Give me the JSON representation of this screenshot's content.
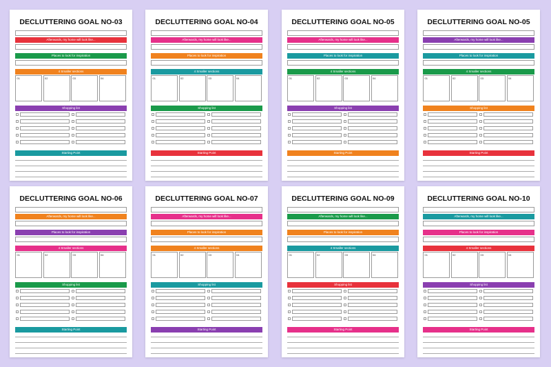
{
  "pages": [
    {
      "title": "DECLUTTERING GOAL NO-03",
      "bars": [
        "Afterwards, my home will look like...",
        "Places to look for inspiration",
        "4 Smaller sections",
        "Shopping list",
        "Starting Point"
      ],
      "sections": [
        "01",
        "02",
        "03",
        "04"
      ],
      "colors": [
        "#e8323c",
        "#1a9a4a",
        "#f0821e",
        "#8a3fb0",
        "#1a9aa0"
      ]
    },
    {
      "title": "DECLUTTERING GOAL NO-04",
      "bars": [
        "Afterwards, my home will look like...",
        "Places to look for inspiration",
        "4 Smaller sections",
        "Shopping list",
        "Starting Point"
      ],
      "sections": [
        "01",
        "02",
        "03",
        "04"
      ],
      "colors": [
        "#e6308a",
        "#f0821e",
        "#1a9aa0",
        "#1a9a4a",
        "#e8323c"
      ]
    },
    {
      "title": "DECLUTTERING GOAL NO-05",
      "bars": [
        "Afterwards, my home will look like...",
        "Places to look for inspiration",
        "4 Smaller sections",
        "Shopping list",
        "Starting Point"
      ],
      "sections": [
        "01",
        "02",
        "03",
        "04"
      ],
      "colors": [
        "#e6308a",
        "#1a9aa0",
        "#1a9a4a",
        "#8a3fb0",
        "#f0821e"
      ]
    },
    {
      "title": "DECLUTTERING GOAL NO-05",
      "bars": [
        "Afterwards, my home will look like...",
        "Places to look for inspiration",
        "4 Smaller sections",
        "Shopping list",
        "Starting Point"
      ],
      "sections": [
        "01",
        "02",
        "03",
        "04"
      ],
      "colors": [
        "#8a3fb0",
        "#1a9aa0",
        "#1a9a4a",
        "#f0821e",
        "#e8323c"
      ]
    },
    {
      "title": "DECLUTTERING GOAL NO-06",
      "bars": [
        "Afterwards, my home will look like...",
        "Places to look for inspiration",
        "4 Smaller sections",
        "Shopping list",
        "Starting Point"
      ],
      "sections": [
        "01",
        "02",
        "03",
        "04"
      ],
      "colors": [
        "#f0821e",
        "#8a3fb0",
        "#e6308a",
        "#1a9a4a",
        "#1a9aa0"
      ]
    },
    {
      "title": "DECLUTTERING GOAL NO-07",
      "bars": [
        "Afterwards, my home will look like...",
        "Places to look for inspiration",
        "4 Smaller sections",
        "Shopping list",
        "Starting Point"
      ],
      "sections": [
        "01",
        "02",
        "03",
        "04"
      ],
      "colors": [
        "#e6308a",
        "#f0821e",
        "#f0821e",
        "#1a9aa0",
        "#8a3fb0"
      ]
    },
    {
      "title": "DECLUTTERING GOAL NO-09",
      "bars": [
        "Afterwards, my home will look like...",
        "Places to look for inspiration",
        "4 Smaller sections",
        "Shopping list",
        "Starting Point"
      ],
      "sections": [
        "01",
        "02",
        "03",
        "04"
      ],
      "colors": [
        "#1a9a4a",
        "#f0821e",
        "#1a9aa0",
        "#e8323c",
        "#e6308a"
      ]
    },
    {
      "title": "DECLUTTERING GOAL NO-10",
      "bars": [
        "Afterwards, my home will look like...",
        "Places to look for inspiration",
        "4 Smaller sections",
        "Shopping list",
        "Starting Point"
      ],
      "sections": [
        "01",
        "02",
        "03",
        "04"
      ],
      "colors": [
        "#1a9aa0",
        "#e6308a",
        "#e8323c",
        "#8a3fb0",
        "#e6308a"
      ]
    }
  ]
}
